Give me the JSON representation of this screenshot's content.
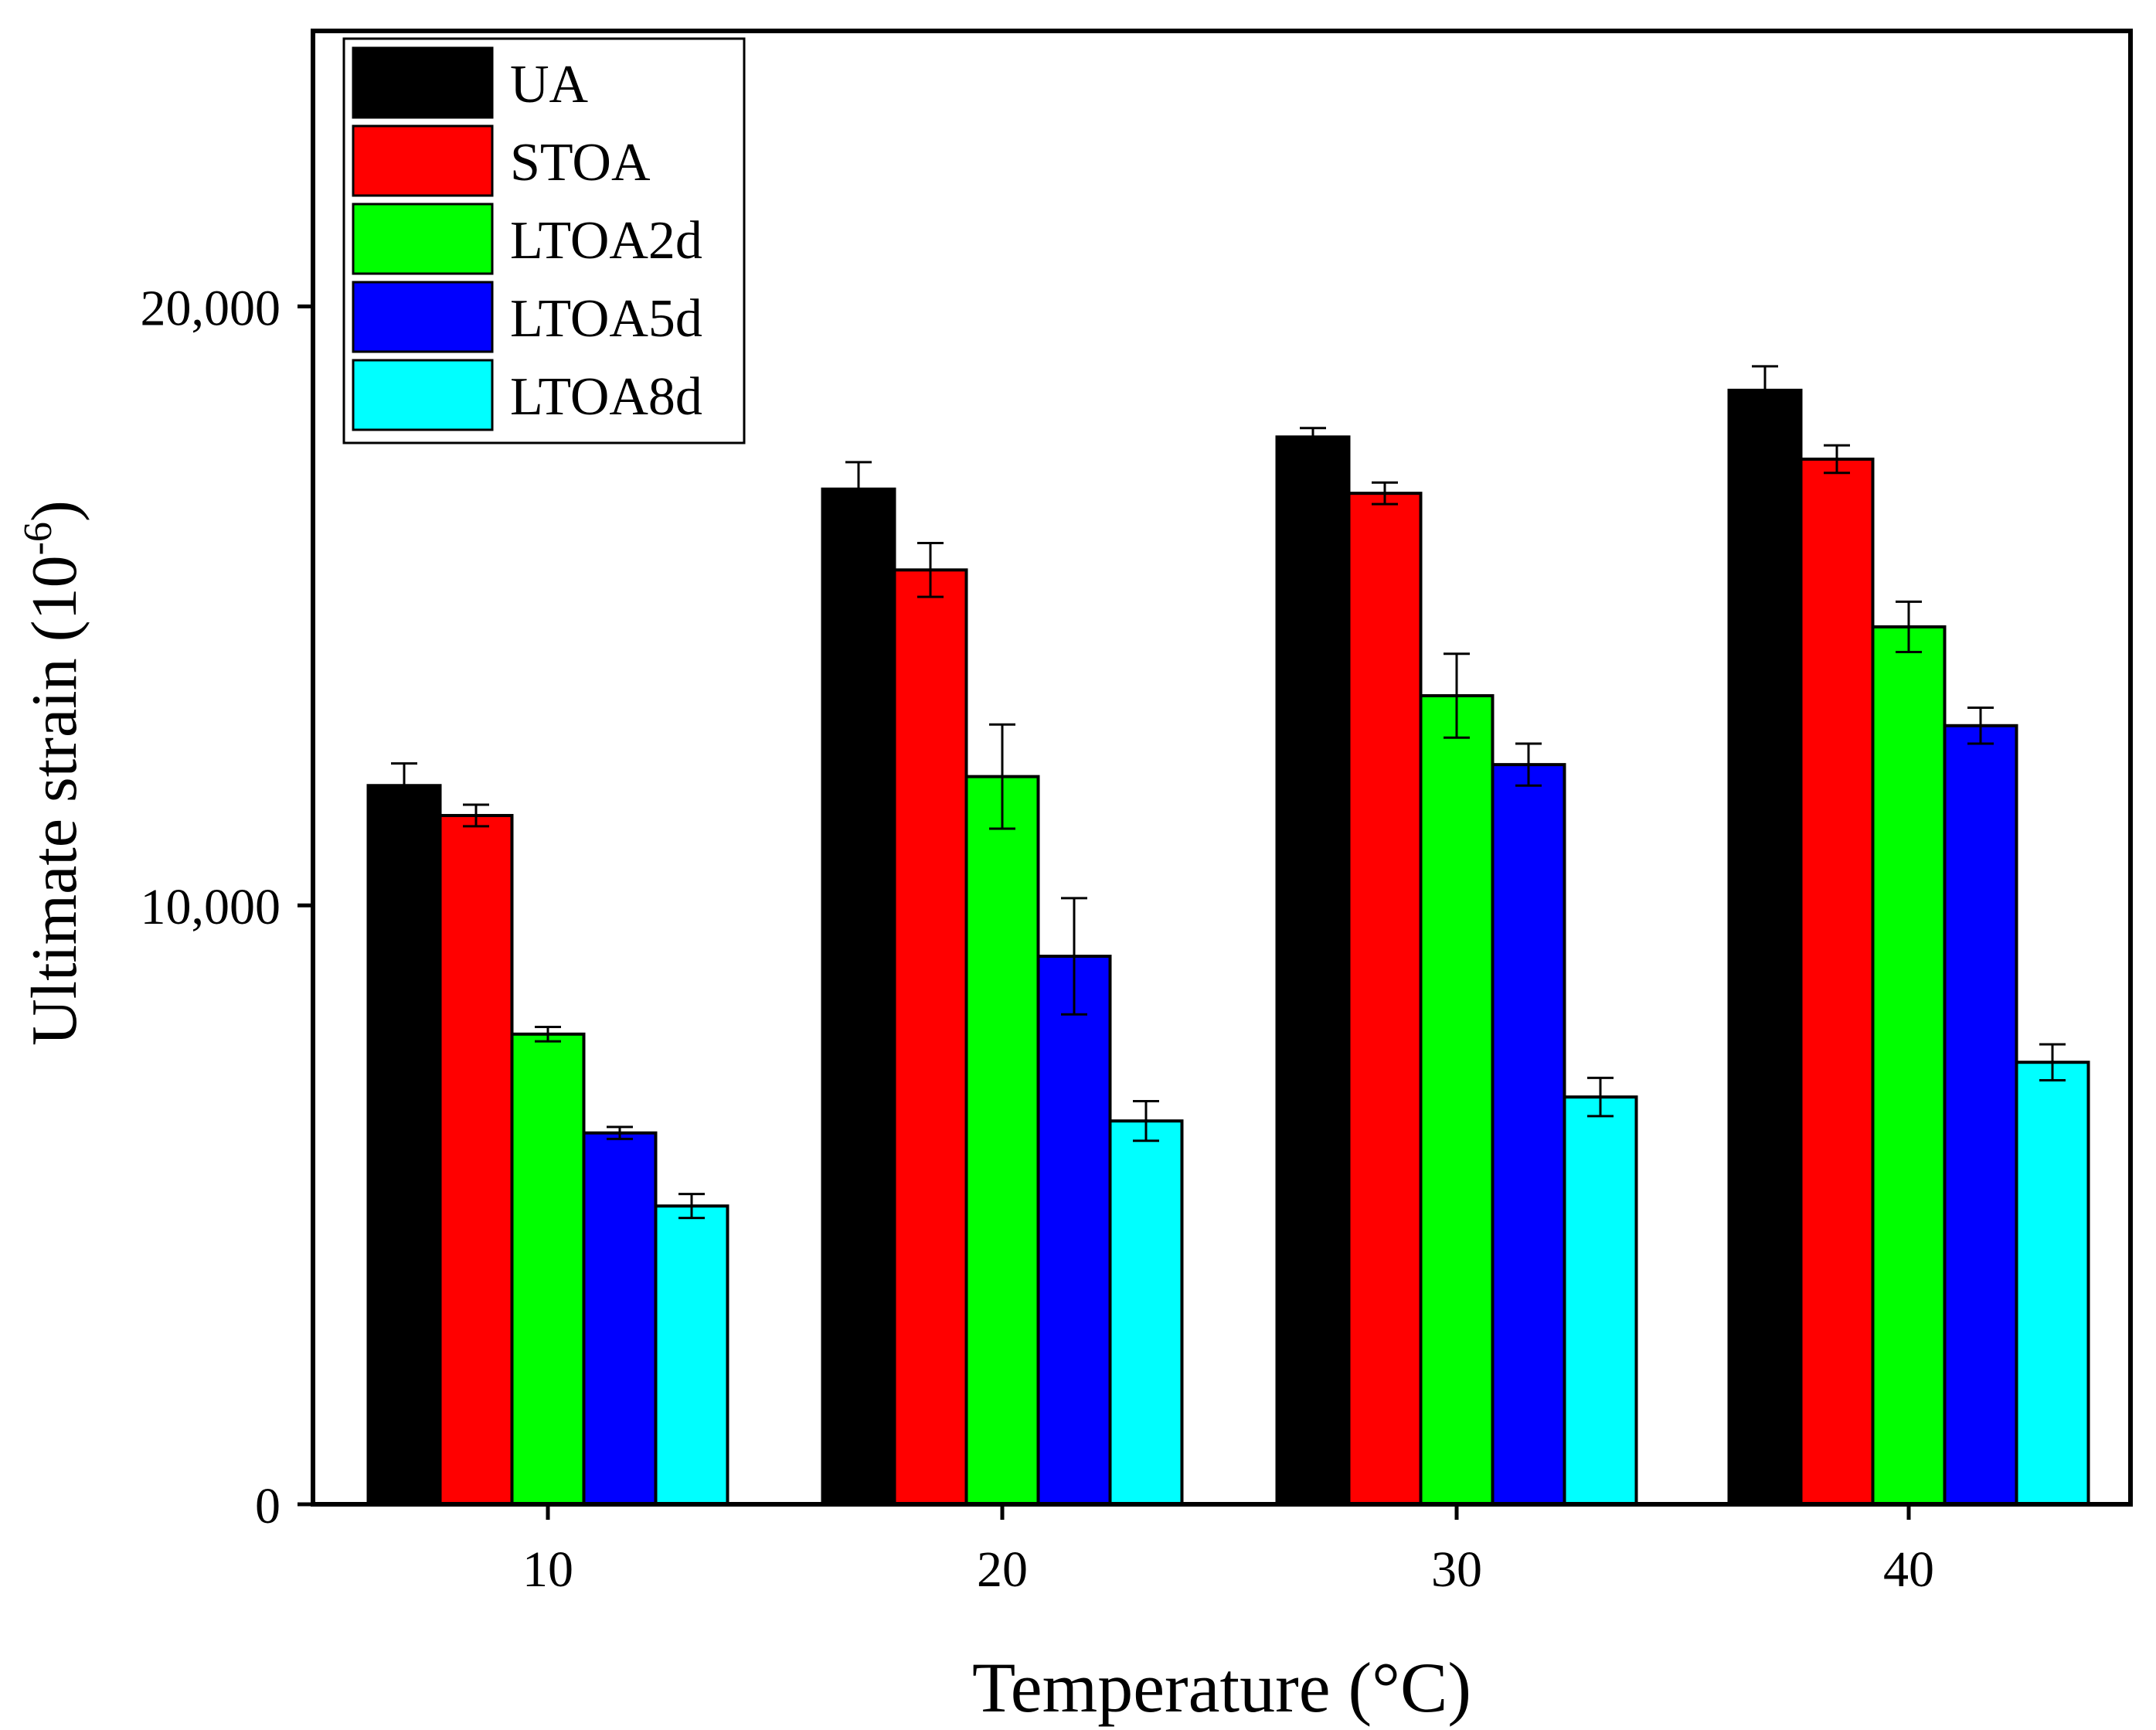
{
  "chart_data": {
    "type": "bar",
    "title": "",
    "xlabel": "Temperature (°C)",
    "ylabel_main": "Ultimate strain (10",
    "ylabel_exp": "-6",
    "ylabel_close": ")",
    "categories": [
      "10",
      "20",
      "30",
      "40"
    ],
    "ylim": [
      0,
      24600
    ],
    "yticks": [
      {
        "value": 0,
        "label": "0"
      },
      {
        "value": 10000,
        "label": "10,000"
      },
      {
        "value": 20000,
        "label": "20,000"
      }
    ],
    "grid": false,
    "legend_position": "top-left",
    "series": [
      {
        "name": "UA",
        "color": "#000000",
        "values": [
          12000,
          16950,
          17820,
          18600
        ],
        "errors": [
          370,
          450,
          150,
          400
        ]
      },
      {
        "name": "STOA",
        "color": "#ff0000",
        "values": [
          11500,
          15600,
          16880,
          17450
        ],
        "errors": [
          180,
          450,
          180,
          230
        ]
      },
      {
        "name": "LTOA2d",
        "color": "#00ff00",
        "values": [
          7850,
          12150,
          13500,
          14650
        ],
        "errors": [
          120,
          870,
          700,
          420
        ]
      },
      {
        "name": "LTOA5d",
        "color": "#0000ff",
        "values": [
          6200,
          9150,
          12350,
          13000
        ],
        "errors": [
          100,
          970,
          350,
          300
        ]
      },
      {
        "name": "LTOA8d",
        "color": "#00ffff",
        "values": [
          4980,
          6400,
          6800,
          7380
        ],
        "errors": [
          200,
          330,
          320,
          300
        ]
      }
    ]
  }
}
